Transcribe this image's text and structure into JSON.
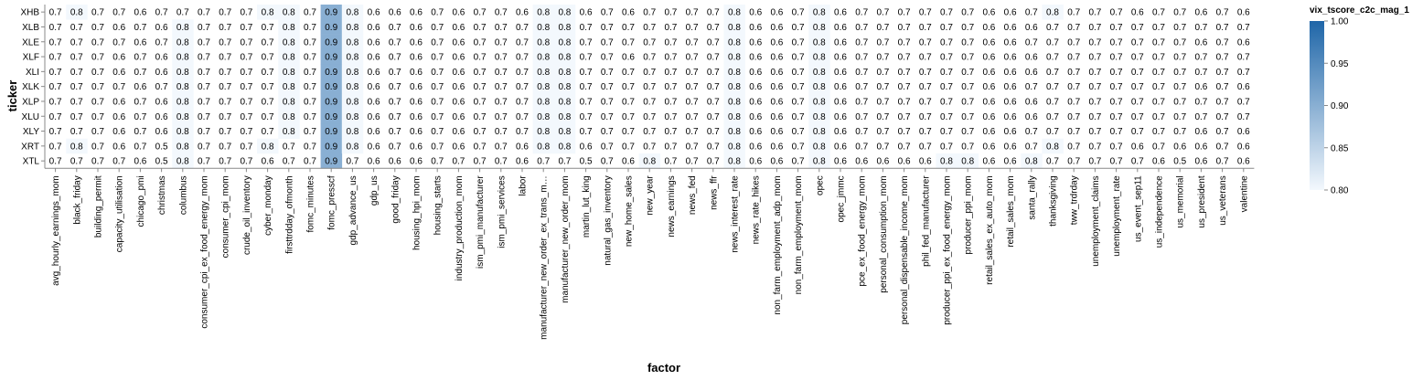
{
  "chart_data": {
    "type": "heatmap",
    "xlabel": "factor",
    "ylabel": "ticker",
    "legend": {
      "title": "vix_tscore_c2c_mag_1",
      "min": 0.8,
      "max": 1.0,
      "ticks": [
        "1.00",
        "0.95",
        "0.90",
        "0.85",
        "0.80"
      ],
      "color_low": "#f3f8fd",
      "color_high": "#1f66a8",
      "placement": "right"
    },
    "x": [
      "avg_hourly_earnings_mom",
      "black_friday",
      "building_permit",
      "capacity_utilisation",
      "chicago_pmi",
      "christmas",
      "columbus",
      "consumer_cpi_ex_food_energy_mom",
      "consumer_cpi_mom",
      "crude_oil_inventory",
      "cyber_monday",
      "firsttrdday_ofmonth",
      "fomc_minutes",
      "fomc_presscf",
      "gdp_advance_us",
      "gdp_us",
      "good_friday",
      "housing_hpi_mom",
      "housing_starts",
      "industry_production_mom",
      "ism_pmi_manufacturer",
      "ism_pmi_services",
      "labor",
      "manufacturer_new_order_ex_trans_m…",
      "manufacturer_new_order_mom",
      "martin_lut_king",
      "natural_gas_inventory",
      "new_home_sales",
      "new_year",
      "news_earnings",
      "news_fed",
      "news_ffr",
      "news_interest_rate",
      "news_rate_hikes",
      "non_farm_employment_adp_mom",
      "non_farm_employment_mom",
      "opec",
      "opec_jmmc",
      "pce_ex_food_energy_mom",
      "personal_consumption_mom",
      "personal_dispensable_income_mom",
      "phil_fed_manufacturer",
      "producer_ppi_ex_food_energy_mom",
      "producer_ppi_mom",
      "retail_sales_ex_auto_mom",
      "retail_sales_mom",
      "santa_rally",
      "thanksgiving",
      "tww_trdrday",
      "unemployment_claims",
      "unemployment_rate",
      "us_event_sep11",
      "us_independence",
      "us_memorial",
      "us_president",
      "us_veterans",
      "valentine"
    ],
    "y": [
      "XHB",
      "XLB",
      "XLE",
      "XLF",
      "XLI",
      "XLK",
      "XLP",
      "XLU",
      "XLY",
      "XRT",
      "XTL"
    ],
    "values": [
      [
        0.7,
        0.8,
        0.7,
        0.7,
        0.6,
        0.7,
        0.7,
        0.7,
        0.7,
        0.7,
        0.8,
        0.8,
        0.7,
        0.9,
        0.8,
        0.6,
        0.6,
        0.6,
        0.7,
        0.6,
        0.7,
        0.7,
        0.6,
        0.8,
        0.8,
        0.6,
        0.7,
        0.6,
        0.7,
        0.7,
        0.7,
        0.7,
        0.8,
        0.6,
        0.6,
        0.7,
        0.8,
        0.6,
        0.7,
        0.7,
        0.7,
        0.7,
        0.7,
        0.7,
        0.6,
        0.6,
        0.7,
        0.8,
        0.7,
        0.7,
        0.7,
        0.6,
        0.7,
        0.7,
        0.6,
        0.7,
        0.6
      ],
      [
        0.7,
        0.7,
        0.7,
        0.6,
        0.7,
        0.6,
        0.8,
        0.7,
        0.7,
        0.7,
        0.7,
        0.8,
        0.7,
        0.9,
        0.8,
        0.6,
        0.7,
        0.6,
        0.7,
        0.6,
        0.7,
        0.7,
        0.7,
        0.8,
        0.8,
        0.7,
        0.7,
        0.7,
        0.7,
        0.7,
        0.7,
        0.7,
        0.8,
        0.6,
        0.6,
        0.7,
        0.8,
        0.6,
        0.7,
        0.7,
        0.7,
        0.7,
        0.7,
        0.7,
        0.6,
        0.6,
        0.6,
        0.7,
        0.7,
        0.7,
        0.7,
        0.7,
        0.7,
        0.7,
        0.7,
        0.7,
        0.7
      ],
      [
        0.7,
        0.7,
        0.7,
        0.7,
        0.6,
        0.7,
        0.8,
        0.7,
        0.7,
        0.7,
        0.7,
        0.8,
        0.7,
        0.9,
        0.8,
        0.6,
        0.7,
        0.6,
        0.7,
        0.6,
        0.7,
        0.7,
        0.7,
        0.8,
        0.8,
        0.7,
        0.7,
        0.7,
        0.7,
        0.7,
        0.7,
        0.7,
        0.8,
        0.6,
        0.6,
        0.7,
        0.8,
        0.6,
        0.7,
        0.7,
        0.7,
        0.7,
        0.7,
        0.7,
        0.6,
        0.6,
        0.7,
        0.7,
        0.7,
        0.7,
        0.7,
        0.7,
        0.7,
        0.7,
        0.6,
        0.7,
        0.6
      ],
      [
        0.7,
        0.7,
        0.7,
        0.6,
        0.7,
        0.6,
        0.8,
        0.7,
        0.7,
        0.7,
        0.7,
        0.8,
        0.7,
        0.9,
        0.8,
        0.6,
        0.7,
        0.6,
        0.7,
        0.6,
        0.7,
        0.7,
        0.7,
        0.8,
        0.8,
        0.7,
        0.7,
        0.6,
        0.7,
        0.7,
        0.7,
        0.7,
        0.8,
        0.6,
        0.6,
        0.7,
        0.8,
        0.6,
        0.7,
        0.7,
        0.7,
        0.7,
        0.7,
        0.7,
        0.6,
        0.6,
        0.6,
        0.7,
        0.7,
        0.7,
        0.7,
        0.7,
        0.7,
        0.7,
        0.7,
        0.7,
        0.7
      ],
      [
        0.7,
        0.7,
        0.7,
        0.6,
        0.7,
        0.6,
        0.8,
        0.7,
        0.7,
        0.7,
        0.7,
        0.8,
        0.7,
        0.9,
        0.8,
        0.6,
        0.7,
        0.6,
        0.7,
        0.6,
        0.7,
        0.7,
        0.7,
        0.8,
        0.8,
        0.7,
        0.7,
        0.7,
        0.7,
        0.7,
        0.7,
        0.7,
        0.8,
        0.6,
        0.6,
        0.7,
        0.8,
        0.6,
        0.7,
        0.7,
        0.7,
        0.7,
        0.7,
        0.7,
        0.6,
        0.6,
        0.6,
        0.7,
        0.7,
        0.7,
        0.7,
        0.7,
        0.7,
        0.7,
        0.7,
        0.7,
        0.7
      ],
      [
        0.7,
        0.7,
        0.7,
        0.7,
        0.6,
        0.7,
        0.8,
        0.7,
        0.7,
        0.7,
        0.7,
        0.8,
        0.7,
        0.9,
        0.8,
        0.6,
        0.7,
        0.6,
        0.7,
        0.6,
        0.7,
        0.7,
        0.7,
        0.8,
        0.8,
        0.7,
        0.7,
        0.7,
        0.7,
        0.7,
        0.7,
        0.7,
        0.8,
        0.6,
        0.6,
        0.7,
        0.8,
        0.6,
        0.7,
        0.7,
        0.7,
        0.7,
        0.7,
        0.7,
        0.6,
        0.6,
        0.7,
        0.7,
        0.7,
        0.7,
        0.7,
        0.7,
        0.7,
        0.7,
        0.6,
        0.7,
        0.6
      ],
      [
        0.7,
        0.7,
        0.7,
        0.6,
        0.7,
        0.6,
        0.8,
        0.7,
        0.7,
        0.7,
        0.7,
        0.8,
        0.7,
        0.9,
        0.8,
        0.6,
        0.7,
        0.6,
        0.7,
        0.6,
        0.7,
        0.7,
        0.7,
        0.8,
        0.8,
        0.7,
        0.7,
        0.7,
        0.7,
        0.7,
        0.7,
        0.7,
        0.8,
        0.6,
        0.6,
        0.7,
        0.8,
        0.6,
        0.7,
        0.7,
        0.7,
        0.7,
        0.7,
        0.7,
        0.6,
        0.6,
        0.6,
        0.7,
        0.7,
        0.7,
        0.7,
        0.7,
        0.7,
        0.7,
        0.7,
        0.7,
        0.7
      ],
      [
        0.7,
        0.7,
        0.7,
        0.6,
        0.7,
        0.6,
        0.8,
        0.7,
        0.7,
        0.7,
        0.7,
        0.8,
        0.7,
        0.9,
        0.8,
        0.6,
        0.7,
        0.6,
        0.7,
        0.6,
        0.7,
        0.7,
        0.7,
        0.8,
        0.8,
        0.7,
        0.7,
        0.7,
        0.7,
        0.7,
        0.7,
        0.7,
        0.8,
        0.6,
        0.6,
        0.7,
        0.8,
        0.6,
        0.7,
        0.7,
        0.7,
        0.7,
        0.7,
        0.7,
        0.6,
        0.6,
        0.6,
        0.7,
        0.7,
        0.7,
        0.7,
        0.7,
        0.7,
        0.7,
        0.7,
        0.7,
        0.7
      ],
      [
        0.7,
        0.7,
        0.7,
        0.6,
        0.7,
        0.6,
        0.8,
        0.7,
        0.7,
        0.7,
        0.7,
        0.8,
        0.7,
        0.9,
        0.8,
        0.6,
        0.7,
        0.6,
        0.7,
        0.6,
        0.7,
        0.7,
        0.7,
        0.8,
        0.8,
        0.7,
        0.7,
        0.7,
        0.7,
        0.7,
        0.7,
        0.7,
        0.8,
        0.6,
        0.6,
        0.7,
        0.8,
        0.6,
        0.7,
        0.7,
        0.7,
        0.7,
        0.7,
        0.7,
        0.6,
        0.6,
        0.7,
        0.7,
        0.7,
        0.7,
        0.7,
        0.7,
        0.7,
        0.7,
        0.6,
        0.7,
        0.6
      ],
      [
        0.7,
        0.8,
        0.7,
        0.6,
        0.7,
        0.5,
        0.8,
        0.7,
        0.7,
        0.7,
        0.8,
        0.7,
        0.7,
        0.9,
        0.8,
        0.6,
        0.7,
        0.6,
        0.7,
        0.6,
        0.7,
        0.7,
        0.6,
        0.8,
        0.8,
        0.6,
        0.7,
        0.7,
        0.7,
        0.7,
        0.7,
        0.7,
        0.8,
        0.6,
        0.6,
        0.7,
        0.8,
        0.6,
        0.7,
        0.7,
        0.7,
        0.7,
        0.7,
        0.7,
        0.6,
        0.6,
        0.7,
        0.8,
        0.7,
        0.7,
        0.7,
        0.6,
        0.7,
        0.6,
        0.6,
        0.7,
        0.6
      ],
      [
        0.7,
        0.7,
        0.7,
        0.7,
        0.6,
        0.5,
        0.8,
        0.7,
        0.7,
        0.7,
        0.6,
        0.7,
        0.7,
        0.9,
        0.7,
        0.6,
        0.6,
        0.6,
        0.7,
        0.7,
        0.7,
        0.7,
        0.6,
        0.7,
        0.7,
        0.5,
        0.7,
        0.6,
        0.8,
        0.7,
        0.7,
        0.7,
        0.8,
        0.6,
        0.6,
        0.7,
        0.8,
        0.6,
        0.6,
        0.6,
        0.6,
        0.6,
        0.8,
        0.8,
        0.6,
        0.6,
        0.8,
        0.7,
        0.7,
        0.7,
        0.7,
        0.7,
        0.6,
        0.5,
        0.6,
        0.7,
        0.6
      ]
    ]
  }
}
